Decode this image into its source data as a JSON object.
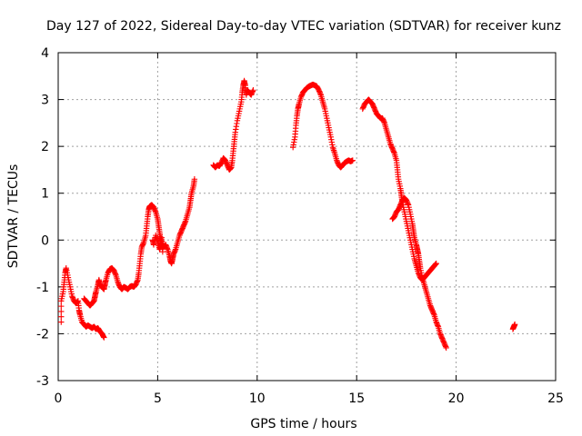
{
  "chart_data": {
    "type": "scatter",
    "title": "Day 127 of 2022, Sidereal Day-to-day VTEC variation (SDTVAR) for receiver kunz",
    "xlabel": "GPS time / hours",
    "ylabel": "SDTVAR / TECUs",
    "xlim": [
      0,
      25
    ],
    "ylim": [
      -3,
      4
    ],
    "xticks": [
      0,
      5,
      10,
      15,
      20,
      25
    ],
    "yticks": [
      -3,
      -2,
      -1,
      0,
      1,
      2,
      3,
      4
    ],
    "grid": true,
    "marker": "+",
    "color": "#ff0000",
    "series": [
      {
        "segments": [
          [
            [
              0.15,
              -1.75
            ],
            [
              0.15,
              -1.3
            ],
            [
              0.25,
              -1.1
            ],
            [
              0.3,
              -0.9
            ],
            [
              0.35,
              -0.7
            ],
            [
              0.4,
              -0.6
            ],
            [
              0.5,
              -0.8
            ],
            [
              0.6,
              -1.0
            ],
            [
              0.7,
              -1.2
            ],
            [
              0.8,
              -1.3
            ],
            [
              0.9,
              -1.35
            ],
            [
              1.0,
              -1.3
            ],
            [
              1.05,
              -1.5
            ],
            [
              1.1,
              -1.6
            ],
            [
              1.2,
              -1.75
            ],
            [
              1.3,
              -1.8
            ],
            [
              1.4,
              -1.85
            ],
            [
              1.5,
              -1.82
            ],
            [
              1.6,
              -1.85
            ],
            [
              1.7,
              -1.88
            ],
            [
              1.8,
              -1.85
            ],
            [
              1.9,
              -1.9
            ],
            [
              2.0,
              -1.88
            ],
            [
              2.1,
              -1.95
            ],
            [
              2.2,
              -2.0
            ],
            [
              2.3,
              -2.08
            ]
          ],
          [
            [
              1.3,
              -1.25
            ],
            [
              1.4,
              -1.3
            ],
            [
              1.5,
              -1.35
            ],
            [
              1.6,
              -1.4
            ],
            [
              1.7,
              -1.35
            ],
            [
              1.8,
              -1.3
            ],
            [
              1.85,
              -1.2
            ],
            [
              1.9,
              -1.1
            ],
            [
              2.0,
              -0.95
            ],
            [
              2.05,
              -0.85
            ],
            [
              2.1,
              -0.95
            ],
            [
              2.2,
              -1.0
            ],
            [
              2.3,
              -1.05
            ],
            [
              2.35,
              -0.95
            ],
            [
              2.4,
              -0.85
            ],
            [
              2.5,
              -0.7
            ],
            [
              2.6,
              -0.62
            ],
            [
              2.7,
              -0.6
            ],
            [
              2.8,
              -0.65
            ],
            [
              2.9,
              -0.75
            ],
            [
              3.0,
              -0.9
            ],
            [
              3.1,
              -1.0
            ],
            [
              3.2,
              -1.05
            ],
            [
              3.3,
              -1.0
            ],
            [
              3.4,
              -1.02
            ],
            [
              3.5,
              -1.05
            ],
            [
              3.6,
              -1.0
            ],
            [
              3.7,
              -0.98
            ],
            [
              3.8,
              -1.0
            ],
            [
              3.9,
              -0.95
            ],
            [
              4.0,
              -0.85
            ],
            [
              4.05,
              -0.7
            ],
            [
              4.1,
              -0.5
            ],
            [
              4.15,
              -0.3
            ],
            [
              4.2,
              -0.15
            ],
            [
              4.3,
              -0.05
            ],
            [
              4.4,
              0.1
            ],
            [
              4.45,
              0.3
            ],
            [
              4.5,
              0.5
            ],
            [
              4.55,
              0.65
            ],
            [
              4.6,
              0.72
            ],
            [
              4.7,
              0.75
            ],
            [
              4.8,
              0.7
            ],
            [
              4.9,
              0.6
            ],
            [
              5.0,
              0.45
            ],
            [
              5.05,
              0.3
            ],
            [
              5.1,
              0.15
            ],
            [
              5.15,
              0.0
            ],
            [
              5.2,
              -0.1
            ],
            [
              5.3,
              -0.15
            ],
            [
              5.4,
              -0.1
            ],
            [
              5.5,
              -0.2
            ],
            [
              5.6,
              -0.35
            ],
            [
              5.65,
              -0.45
            ],
            [
              5.7,
              -0.5
            ],
            [
              5.75,
              -0.4
            ],
            [
              5.8,
              -0.3
            ],
            [
              5.9,
              -0.2
            ],
            [
              6.0,
              -0.05
            ],
            [
              6.1,
              0.1
            ],
            [
              6.2,
              0.2
            ],
            [
              6.3,
              0.3
            ],
            [
              6.4,
              0.4
            ],
            [
              6.5,
              0.55
            ],
            [
              6.6,
              0.7
            ],
            [
              6.65,
              0.85
            ],
            [
              6.7,
              1.0
            ],
            [
              6.8,
              1.15
            ],
            [
              6.85,
              1.3
            ]
          ],
          [
            [
              4.75,
              0.0
            ],
            [
              4.8,
              -0.1
            ],
            [
              4.9,
              0.1
            ],
            [
              5.0,
              -0.05
            ],
            [
              5.1,
              -0.2
            ],
            [
              5.15,
              -0.1
            ],
            [
              5.2,
              0.05
            ],
            [
              5.25,
              -0.25
            ]
          ],
          [
            [
              7.8,
              1.6
            ],
            [
              7.9,
              1.55
            ],
            [
              8.0,
              1.6
            ],
            [
              8.1,
              1.58
            ],
            [
              8.2,
              1.65
            ],
            [
              8.3,
              1.75
            ],
            [
              8.4,
              1.7
            ],
            [
              8.5,
              1.6
            ],
            [
              8.6,
              1.5
            ],
            [
              8.7,
              1.55
            ],
            [
              8.75,
              1.7
            ],
            [
              8.8,
              1.9
            ],
            [
              8.85,
              2.1
            ],
            [
              8.9,
              2.3
            ],
            [
              9.0,
              2.55
            ],
            [
              9.1,
              2.75
            ],
            [
              9.2,
              2.95
            ],
            [
              9.25,
              3.15
            ],
            [
              9.3,
              3.3
            ],
            [
              9.35,
              3.4
            ],
            [
              9.4,
              3.3
            ],
            [
              9.45,
              3.1
            ],
            [
              9.5,
              3.2
            ],
            [
              9.6,
              3.15
            ],
            [
              9.7,
              3.1
            ],
            [
              9.8,
              3.2
            ]
          ],
          [
            [
              11.8,
              1.98
            ],
            [
              11.9,
              2.2
            ],
            [
              11.95,
              2.45
            ],
            [
              12.0,
              2.65
            ],
            [
              12.05,
              2.8
            ],
            [
              12.1,
              2.9
            ],
            [
              12.2,
              3.05
            ],
            [
              12.3,
              3.15
            ],
            [
              12.4,
              3.2
            ],
            [
              12.5,
              3.25
            ],
            [
              12.6,
              3.28
            ],
            [
              12.7,
              3.3
            ],
            [
              12.8,
              3.32
            ],
            [
              12.9,
              3.3
            ],
            [
              13.0,
              3.28
            ],
            [
              13.1,
              3.2
            ],
            [
              13.2,
              3.1
            ],
            [
              13.3,
              2.95
            ],
            [
              13.4,
              2.8
            ],
            [
              13.5,
              2.6
            ],
            [
              13.6,
              2.4
            ],
            [
              13.7,
              2.2
            ],
            [
              13.8,
              1.98
            ],
            [
              13.9,
              1.85
            ],
            [
              14.0,
              1.7
            ],
            [
              14.1,
              1.6
            ],
            [
              14.2,
              1.55
            ],
            [
              14.3,
              1.6
            ],
            [
              14.4,
              1.65
            ],
            [
              14.5,
              1.68
            ],
            [
              14.6,
              1.7
            ],
            [
              14.7,
              1.68
            ],
            [
              14.8,
              1.7
            ]
          ],
          [
            [
              15.3,
              2.8
            ],
            [
              15.4,
              2.9
            ],
            [
              15.5,
              2.95
            ],
            [
              15.6,
              3.0
            ],
            [
              15.7,
              2.95
            ],
            [
              15.8,
              2.9
            ],
            [
              15.9,
              2.8
            ],
            [
              16.0,
              2.7
            ],
            [
              16.1,
              2.65
            ],
            [
              16.2,
              2.6
            ],
            [
              16.3,
              2.6
            ],
            [
              16.4,
              2.5
            ],
            [
              16.5,
              2.35
            ],
            [
              16.6,
              2.2
            ],
            [
              16.7,
              2.05
            ],
            [
              16.8,
              1.95
            ],
            [
              16.9,
              1.85
            ],
            [
              17.0,
              1.7
            ],
            [
              17.05,
              1.5
            ],
            [
              17.1,
              1.3
            ],
            [
              17.2,
              1.1
            ],
            [
              17.25,
              0.95
            ],
            [
              17.3,
              0.8
            ],
            [
              17.4,
              0.6
            ],
            [
              17.5,
              0.4
            ],
            [
              17.6,
              0.2
            ],
            [
              17.7,
              0.0
            ],
            [
              17.8,
              -0.2
            ],
            [
              17.9,
              -0.4
            ],
            [
              18.0,
              -0.55
            ],
            [
              18.1,
              -0.7
            ],
            [
              18.2,
              -0.8
            ],
            [
              18.3,
              -0.85
            ],
            [
              18.4,
              -0.8
            ],
            [
              18.5,
              -0.75
            ],
            [
              18.6,
              -0.7
            ],
            [
              18.7,
              -0.65
            ],
            [
              18.8,
              -0.6
            ],
            [
              18.9,
              -0.55
            ],
            [
              19.0,
              -0.5
            ]
          ],
          [
            [
              16.8,
              0.45
            ],
            [
              16.9,
              0.5
            ],
            [
              17.0,
              0.6
            ],
            [
              17.1,
              0.65
            ],
            [
              17.2,
              0.75
            ],
            [
              17.3,
              0.85
            ],
            [
              17.4,
              0.9
            ],
            [
              17.5,
              0.85
            ],
            [
              17.6,
              0.75
            ],
            [
              17.7,
              0.55
            ],
            [
              17.8,
              0.35
            ],
            [
              17.85,
              0.2
            ],
            [
              17.9,
              0.05
            ],
            [
              18.0,
              -0.1
            ],
            [
              18.05,
              -0.2
            ],
            [
              18.1,
              -0.3
            ],
            [
              18.15,
              -0.45
            ],
            [
              18.2,
              -0.6
            ],
            [
              18.3,
              -0.8
            ],
            [
              18.4,
              -0.95
            ],
            [
              18.5,
              -1.1
            ],
            [
              18.6,
              -1.25
            ],
            [
              18.7,
              -1.4
            ],
            [
              18.8,
              -1.5
            ],
            [
              18.9,
              -1.6
            ],
            [
              19.0,
              -1.75
            ],
            [
              19.1,
              -1.85
            ],
            [
              19.2,
              -2.0
            ],
            [
              19.3,
              -2.1
            ],
            [
              19.4,
              -2.2
            ],
            [
              19.5,
              -2.3
            ]
          ],
          [
            [
              22.85,
              -1.9
            ],
            [
              22.9,
              -1.85
            ],
            [
              22.95,
              -1.8
            ]
          ]
        ]
      }
    ]
  }
}
